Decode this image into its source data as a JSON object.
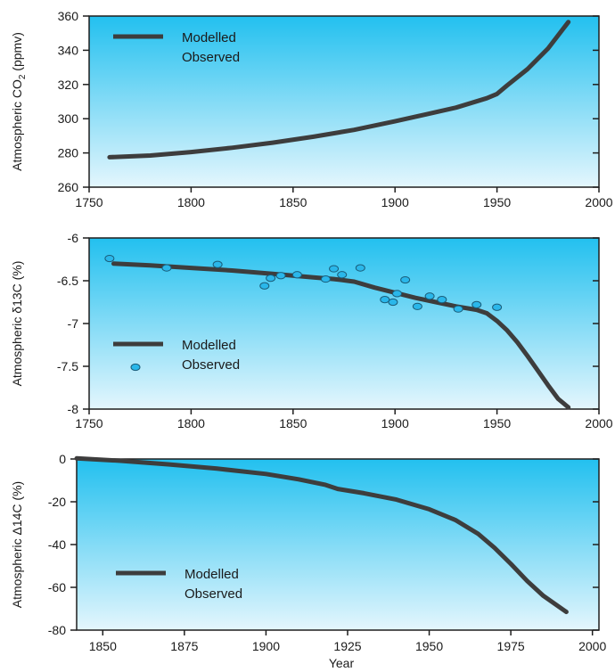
{
  "colors": {
    "gradient_top": "#22c0ef",
    "gradient_bottom": "#e4f6fd",
    "model_line": "#3d3d3d",
    "observed_fill": "#2ab7ea",
    "observed_stroke": "#1a5d7a",
    "frame": "#1e1e1e"
  },
  "chart_data": [
    {
      "type": "line",
      "ylabel": "Atmospheric CO",
      "ylabel_sub": "2",
      "ylabel_unit": " (ppmv)",
      "xlabel": "",
      "xlim": [
        1750,
        2000
      ],
      "ylim": [
        260,
        360
      ],
      "xticks": [
        "1750",
        "1800",
        "1850",
        "1900",
        "1950",
        "2000"
      ],
      "xtick_values": [
        1750,
        1800,
        1850,
        1900,
        1950,
        2000
      ],
      "yticks": [
        "260",
        "280",
        "300",
        "320",
        "340",
        "360"
      ],
      "ytick_values": [
        260,
        280,
        300,
        320,
        340,
        360
      ],
      "grid": false,
      "legend": {
        "placement": "top-left",
        "entries": [
          {
            "label": "Modelled",
            "marker": "line"
          },
          {
            "label": "Observed",
            "marker": "none"
          }
        ]
      },
      "series": [
        {
          "name": "Modelled",
          "x": [
            1760,
            1780,
            1800,
            1820,
            1840,
            1860,
            1880,
            1900,
            1915,
            1930,
            1945,
            1950,
            1955,
            1965,
            1975,
            1985
          ],
          "y": [
            277.5,
            278.5,
            280.5,
            283,
            286,
            289.5,
            293.5,
            298.5,
            302.5,
            306.5,
            312,
            314.5,
            319.5,
            329,
            341,
            356.5
          ]
        }
      ]
    },
    {
      "type": "line",
      "ylabel": "Atmospheric δ13C (%)",
      "xlabel": "",
      "xlim": [
        1750,
        2000
      ],
      "ylim": [
        -8,
        -6
      ],
      "xticks": [
        "1750",
        "1800",
        "1850",
        "1900",
        "1950",
        "2000"
      ],
      "xtick_values": [
        1750,
        1800,
        1850,
        1900,
        1950,
        2000
      ],
      "yticks": [
        "-6",
        "-6.5",
        "-7",
        "-7.5",
        "-8"
      ],
      "ytick_values": [
        -6,
        -6.5,
        -7,
        -7.5,
        -8
      ],
      "grid": false,
      "legend": {
        "placement": "bottom-left",
        "entries": [
          {
            "label": "Modelled",
            "marker": "line"
          },
          {
            "label": "Observed",
            "marker": "ellipse"
          }
        ]
      },
      "series": [
        {
          "name": "Modelled",
          "x": [
            1762,
            1780,
            1800,
            1820,
            1840,
            1860,
            1870,
            1880,
            1890,
            1900,
            1910,
            1920,
            1930,
            1940,
            1945,
            1950,
            1955,
            1960,
            1965,
            1970,
            1975,
            1980,
            1985
          ],
          "y": [
            -6.3,
            -6.32,
            -6.35,
            -6.38,
            -6.42,
            -6.46,
            -6.48,
            -6.51,
            -6.58,
            -6.64,
            -6.7,
            -6.75,
            -6.8,
            -6.84,
            -6.88,
            -6.97,
            -7.08,
            -7.22,
            -7.38,
            -7.55,
            -7.72,
            -7.88,
            -7.98
          ]
        },
        {
          "name": "Observed",
          "x": [
            1760,
            1788,
            1813,
            1836,
            1839,
            1844,
            1852,
            1866,
            1870,
            1874,
            1883,
            1895,
            1899,
            1901,
            1905,
            1911,
            1917,
            1923,
            1931,
            1940,
            1950
          ],
          "y": [
            -6.24,
            -6.35,
            -6.31,
            -6.56,
            -6.47,
            -6.44,
            -6.43,
            -6.48,
            -6.36,
            -6.43,
            -6.35,
            -6.72,
            -6.75,
            -6.65,
            -6.49,
            -6.8,
            -6.68,
            -6.72,
            -6.83,
            -6.78,
            -6.81
          ]
        }
      ]
    },
    {
      "type": "line",
      "ylabel": "Atmospheric Δ14C (%)",
      "xlabel": "Year",
      "xlim": [
        1842,
        2002
      ],
      "ylim": [
        -80,
        0
      ],
      "xticks": [
        "1850",
        "1875",
        "1900",
        "1925",
        "1950",
        "1975",
        "2000"
      ],
      "xtick_values": [
        1850,
        1875,
        1900,
        1925,
        1950,
        1975,
        2000
      ],
      "yticks": [
        "0",
        "-20",
        "-40",
        "-60",
        "-80"
      ],
      "ytick_values": [
        0,
        -20,
        -40,
        -60,
        -80
      ],
      "grid": false,
      "legend": {
        "placement": "bottom-left",
        "entries": [
          {
            "label": "Modelled",
            "marker": "line"
          },
          {
            "label": "Observed",
            "marker": "none"
          }
        ]
      },
      "series": [
        {
          "name": "Modelled",
          "x": [
            1842,
            1855,
            1870,
            1885,
            1900,
            1910,
            1918,
            1922,
            1930,
            1940,
            1950,
            1958,
            1965,
            1970,
            1975,
            1980,
            1985,
            1992
          ],
          "y": [
            0.3,
            -0.8,
            -2.5,
            -4.5,
            -7,
            -9.5,
            -12,
            -14,
            -16,
            -19,
            -23.5,
            -28.5,
            -35,
            -41.5,
            -49,
            -57,
            -64,
            -71.5
          ]
        }
      ]
    }
  ]
}
